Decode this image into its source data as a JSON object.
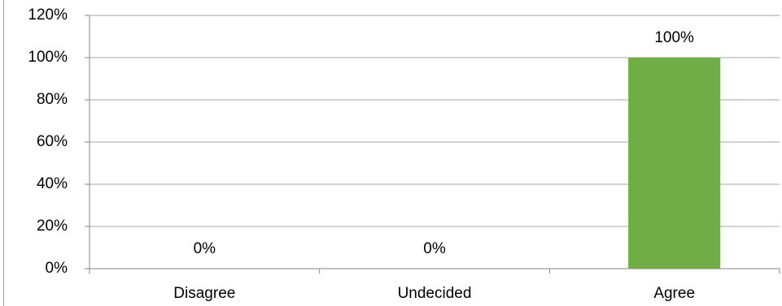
{
  "chart_data": {
    "type": "bar",
    "categories": [
      "Disagree",
      "Undecided",
      "Agree"
    ],
    "values": [
      0,
      0,
      100
    ],
    "value_labels": [
      "0%",
      "0%",
      "100%"
    ],
    "color": "#70ad47",
    "ylim": [
      0,
      120
    ],
    "yticks": [
      {
        "value": 0,
        "label": "0%"
      },
      {
        "value": 20,
        "label": "20%"
      },
      {
        "value": 40,
        "label": "40%"
      },
      {
        "value": 60,
        "label": "60%"
      },
      {
        "value": 80,
        "label": "80%"
      },
      {
        "value": 100,
        "label": "100%"
      },
      {
        "value": 120,
        "label": "120%"
      }
    ],
    "grid": true
  }
}
